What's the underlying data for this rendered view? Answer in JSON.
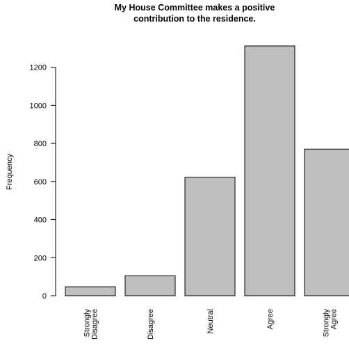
{
  "chart_data": {
    "type": "bar",
    "title_lines": [
      "My House Committee makes a positive",
      "contribution to the residence."
    ],
    "ylabel": "Frequency",
    "xlabel": "",
    "categories": [
      [
        "Strongly",
        "Disagree"
      ],
      [
        "Disagree"
      ],
      [
        "Neutral"
      ],
      [
        "Agree"
      ],
      [
        "Strongly",
        "Agree"
      ]
    ],
    "values": [
      47,
      105,
      622,
      1312,
      770
    ],
    "yticks": [
      0,
      200,
      400,
      600,
      800,
      1000,
      1200
    ],
    "ylim": [
      0,
      1312
    ],
    "bar_color": "#bebebe",
    "bar_edge_color": "#000000",
    "grid": false,
    "legend": "none"
  }
}
